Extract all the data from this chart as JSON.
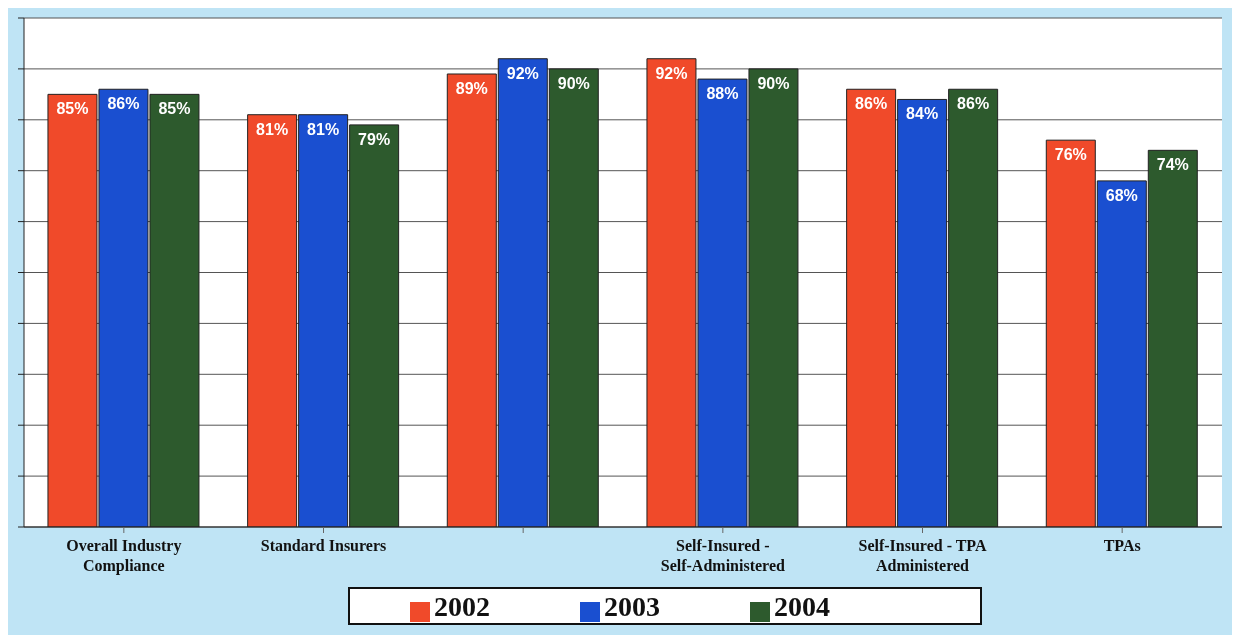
{
  "chart_data": {
    "type": "bar",
    "categories": [
      "Overall Industry Compliance",
      "Standard Insurers",
      null,
      "Self-Insured - Self-Administered",
      "Self-Insured - TPA Administered",
      "TPAs"
    ],
    "series": [
      {
        "name": "2002",
        "color": "#f04a2a",
        "values": [
          85,
          81,
          89,
          92,
          86,
          76
        ],
        "value_labels": [
          "85%",
          "81%",
          "89%",
          "92%",
          "86%",
          "76%"
        ]
      },
      {
        "name": "2003",
        "color": "#1a4fd0",
        "values": [
          86,
          81,
          92,
          88,
          84,
          68
        ],
        "value_labels": [
          "86%",
          "81%",
          "92%",
          "88%",
          "84%",
          "68%"
        ]
      },
      {
        "name": "2004",
        "color": "#2d5a2d",
        "values": [
          85,
          79,
          90,
          90,
          86,
          74
        ],
        "value_labels": [
          "85%",
          "79%",
          "90%",
          "90%",
          "86%",
          "74%"
        ]
      }
    ],
    "ylim": [
      0,
      100
    ],
    "yticks": [
      {
        "value": 0,
        "label": null
      },
      {
        "value": 10,
        "label": null
      },
      {
        "value": 20,
        "label": null
      },
      {
        "value": 30,
        "label": null
      },
      {
        "value": 40,
        "label": null
      },
      {
        "value": 50,
        "label": null
      },
      {
        "value": 60,
        "label": null
      },
      {
        "value": 70,
        "label": null
      },
      {
        "value": 80,
        "label": null
      },
      {
        "value": 90,
        "label": null
      },
      {
        "value": 100,
        "label": null
      }
    ],
    "grid": "y",
    "legend": "bottom",
    "tick_labels": "x"
  }
}
